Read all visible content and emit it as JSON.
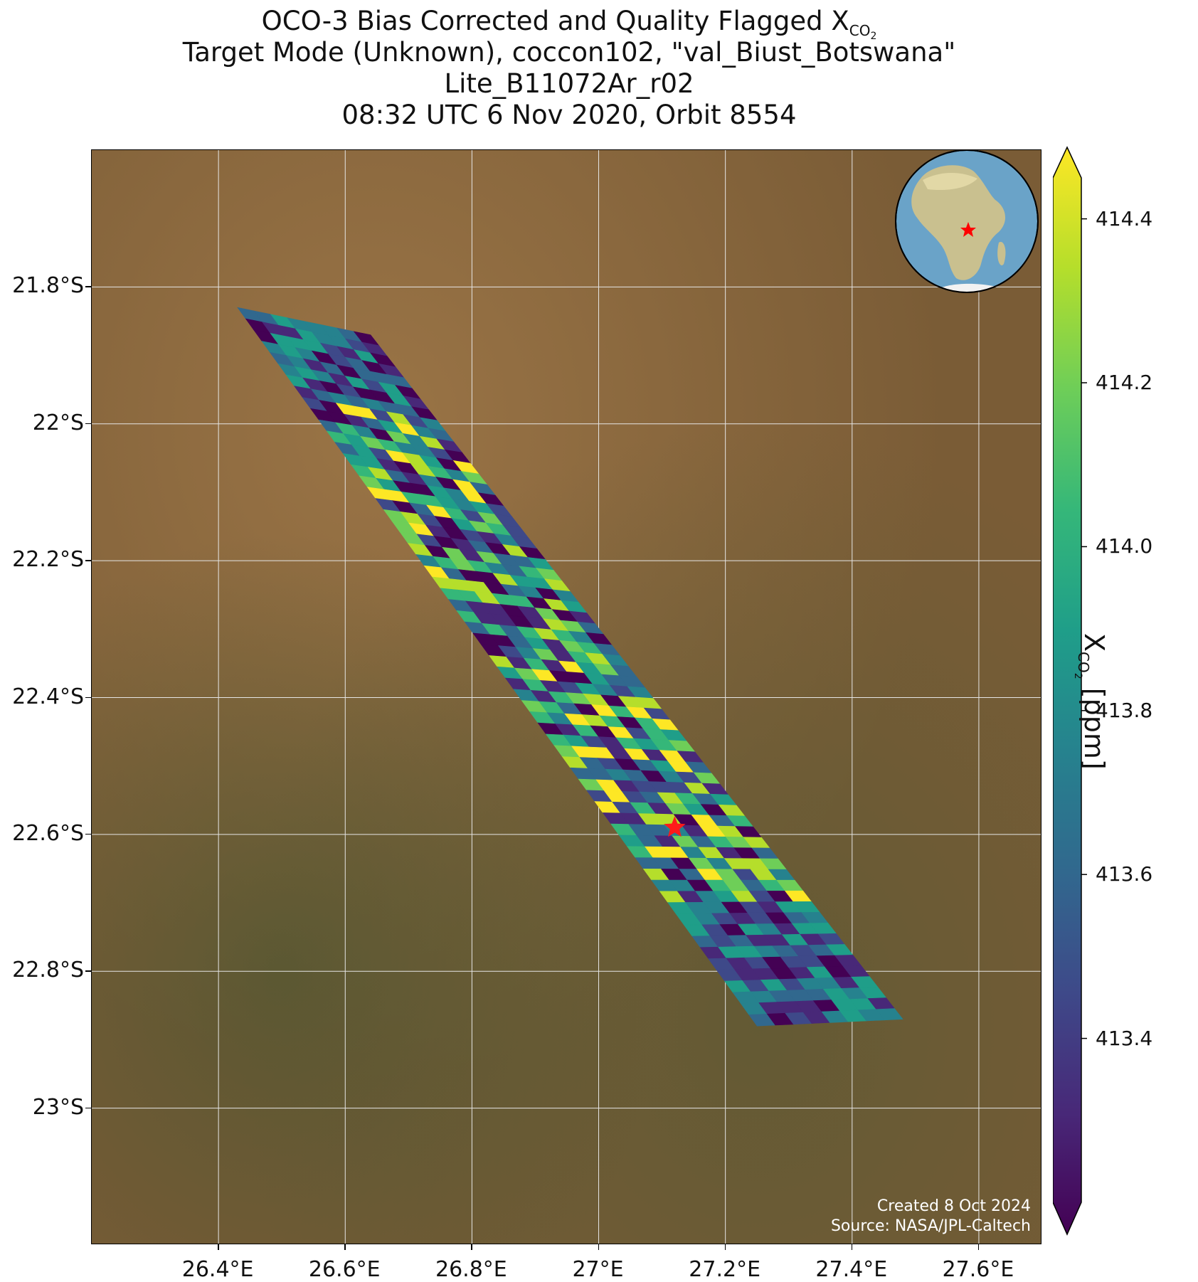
{
  "title": {
    "line1_prefix": "OCO-3 Bias Corrected and Quality Flagged X",
    "line1_sub": "CO",
    "line1_sub2": "2",
    "line2": "Target Mode (Unknown), coccon102, \"val_Biust_Botswana\"",
    "line3": "Lite_B11072Ar_r02",
    "line4": "08:32 UTC 6 Nov 2020, Orbit 8554"
  },
  "credit": {
    "created": "Created 8 Oct 2024",
    "source": "Source: NASA/JPL-Caltech"
  },
  "axes": {
    "lat_ticks": [
      {
        "label": "21.8°S",
        "value": -21.8
      },
      {
        "label": "22°S",
        "value": -22.0
      },
      {
        "label": "22.2°S",
        "value": -22.2
      },
      {
        "label": "22.4°S",
        "value": -22.4
      },
      {
        "label": "22.6°S",
        "value": -22.6
      },
      {
        "label": "22.8°S",
        "value": -22.8
      },
      {
        "label": "23°S",
        "value": -23.0
      }
    ],
    "lon_ticks": [
      {
        "label": "26.4°E",
        "value": 26.4
      },
      {
        "label": "26.6°E",
        "value": 26.6
      },
      {
        "label": "26.8°E",
        "value": 26.8
      },
      {
        "label": "27°E",
        "value": 27.0
      },
      {
        "label": "27.2°E",
        "value": 27.2
      },
      {
        "label": "27.4°E",
        "value": 27.4
      },
      {
        "label": "27.6°E",
        "value": 27.6
      }
    ],
    "lon_range": [
      26.2,
      27.7
    ],
    "lat_range": [
      -23.2,
      -21.6
    ]
  },
  "site": {
    "lon": 27.12,
    "lat": -22.59,
    "color": "#ff1a1a"
  },
  "colorbar": {
    "min": 413.2,
    "max": 414.45,
    "ticks": [
      {
        "label": "414.4",
        "value": 414.4
      },
      {
        "label": "414.2",
        "value": 414.2
      },
      {
        "label": "414.0",
        "value": 414.0
      },
      {
        "label": "413.8",
        "value": 413.8
      },
      {
        "label": "413.6",
        "value": 413.6
      },
      {
        "label": "413.4",
        "value": 413.4
      }
    ],
    "label_prefix": "X",
    "label_sub": "CO",
    "label_sub2": "2",
    "label_suffix": " [ppm]",
    "colormap": "viridis",
    "colormap_stops": [
      "#440154",
      "#482878",
      "#3e4989",
      "#31688e",
      "#26828e",
      "#1f9e89",
      "#35b779",
      "#6ece58",
      "#b5de2b",
      "#fde725"
    ]
  },
  "swath": {
    "corner_nw": {
      "lon": 26.43,
      "lat": -21.83
    },
    "corner_ne": {
      "lon": 26.64,
      "lat": -21.87
    },
    "corner_se": {
      "lon": 27.48,
      "lat": -22.87
    },
    "corner_sw": {
      "lon": 27.25,
      "lat": -22.88
    },
    "note_colors": "soundings colored by XCO2 in viridis",
    "palette": {
      "background_map": "#8a6a40",
      "grid": "#e6e6e6"
    }
  },
  "inset_globe": {
    "center_lon": 25,
    "center_lat": 0,
    "marker_color": "#ff0000"
  }
}
